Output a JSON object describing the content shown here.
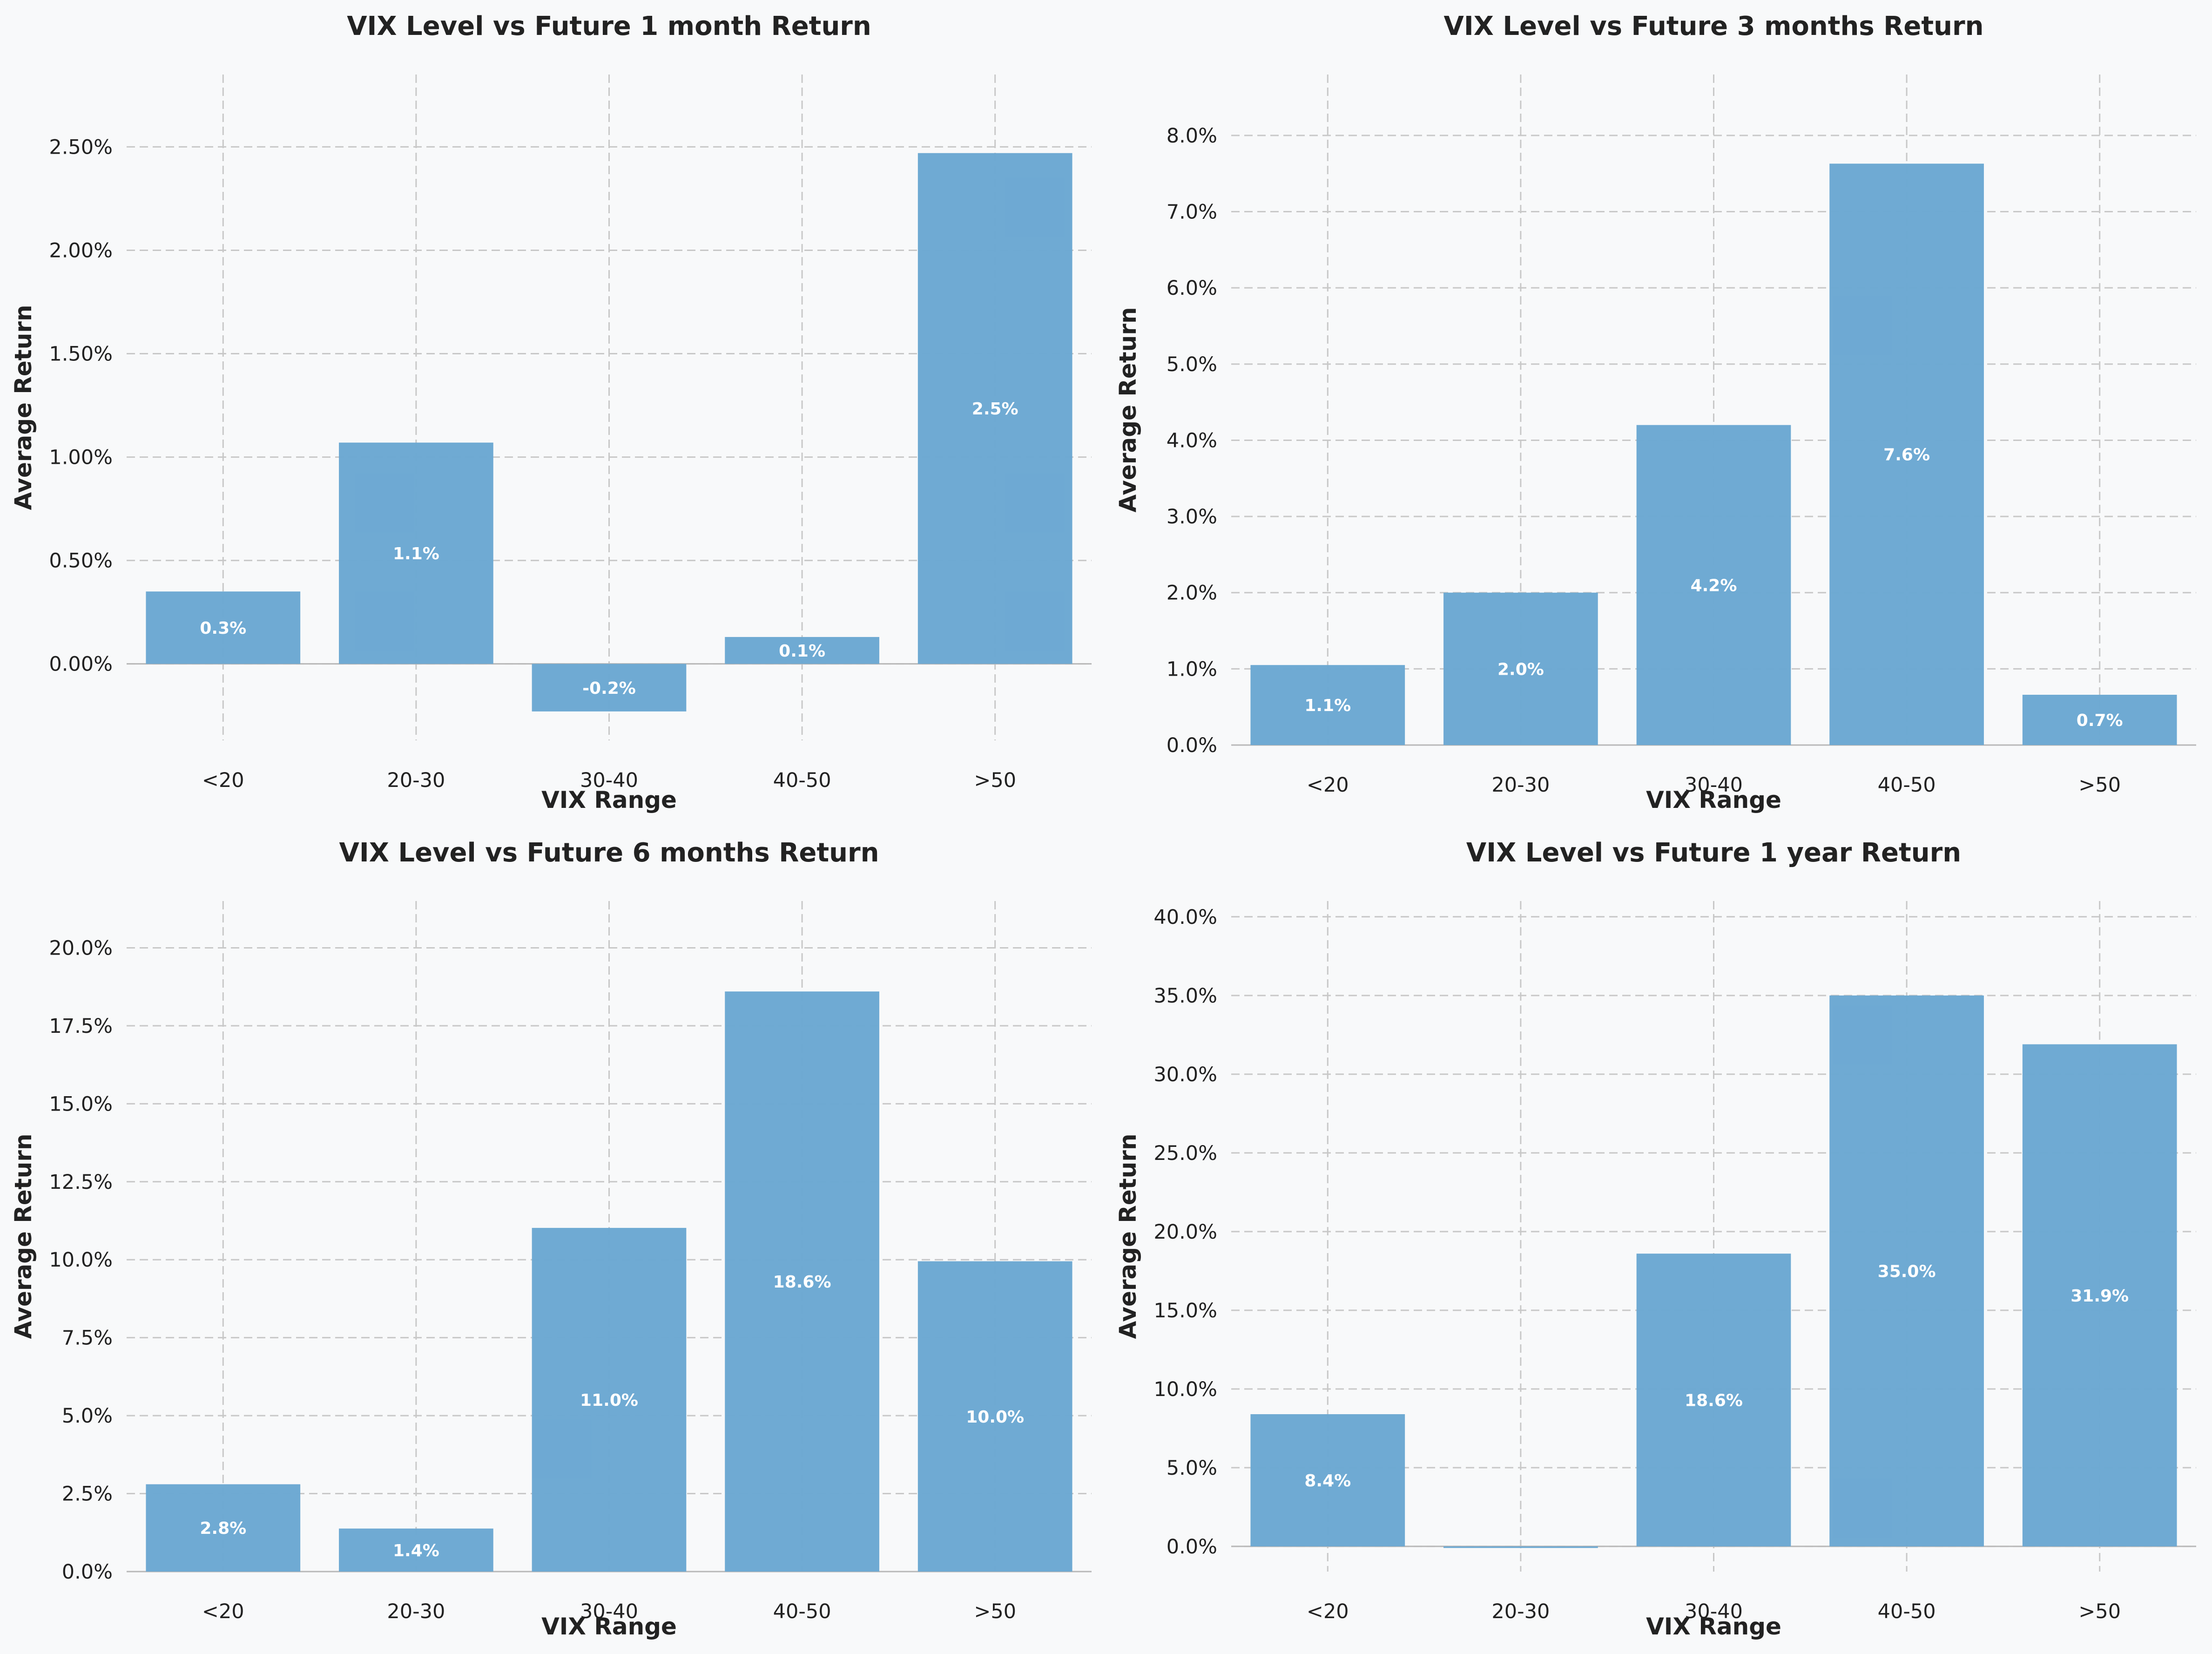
{
  "colors": {
    "background": "#f8f9fa",
    "bar": "#6aa7d2",
    "grid": "#c8c8c8",
    "text": "#222222",
    "bar_label": "#ffffff"
  },
  "chart_data": [
    {
      "type": "bar",
      "title": "VIX Level vs Future 1 month Return",
      "xlabel": "VIX Range",
      "ylabel": "Average Return",
      "categories": [
        "<20",
        "20-30",
        "30-40",
        "40-50",
        ">50"
      ],
      "values": [
        0.35,
        1.07,
        -0.23,
        0.13,
        2.47
      ],
      "data_labels": [
        "0.3%",
        "1.1%",
        "-0.2%",
        "0.1%",
        "2.5%"
      ],
      "ylim": [
        -0.37,
        2.85
      ],
      "yticks": [
        0.0,
        0.5,
        1.0,
        1.5,
        2.0,
        2.5
      ],
      "ytick_labels": [
        "0.00%",
        "0.50%",
        "1.00%",
        "1.50%",
        "2.00%",
        "2.50%"
      ],
      "grid": true
    },
    {
      "type": "bar",
      "title": "VIX Level vs Future 3 months Return",
      "xlabel": "VIX Range",
      "ylabel": "Average Return",
      "categories": [
        "<20",
        "20-30",
        "30-40",
        "40-50",
        ">50"
      ],
      "values": [
        1.05,
        2.0,
        4.2,
        7.63,
        0.66
      ],
      "data_labels": [
        "1.1%",
        "2.0%",
        "4.2%",
        "7.6%",
        "0.7%"
      ],
      "ylim": [
        0,
        8.8
      ],
      "yticks": [
        0,
        1,
        2,
        3,
        4,
        5,
        6,
        7,
        8
      ],
      "ytick_labels": [
        "0.0%",
        "1.0%",
        "2.0%",
        "3.0%",
        "4.0%",
        "5.0%",
        "6.0%",
        "7.0%",
        "8.0%"
      ],
      "grid": true
    },
    {
      "type": "bar",
      "title": "VIX Level vs Future 6 months Return",
      "xlabel": "VIX Range",
      "ylabel": "Average Return",
      "categories": [
        "<20",
        "20-30",
        "30-40",
        "40-50",
        ">50"
      ],
      "values": [
        2.8,
        1.38,
        11.02,
        18.6,
        9.95
      ],
      "data_labels": [
        "2.8%",
        "1.4%",
        "11.0%",
        "18.6%",
        "10.0%"
      ],
      "ylim": [
        0,
        21.5
      ],
      "yticks": [
        0,
        2.5,
        5,
        7.5,
        10,
        12.5,
        15,
        17.5,
        20
      ],
      "ytick_labels": [
        "0.0%",
        "2.5%",
        "5.0%",
        "7.5%",
        "10.0%",
        "12.5%",
        "15.0%",
        "17.5%",
        "20.0%"
      ],
      "grid": true
    },
    {
      "type": "bar",
      "title": "VIX Level vs Future 1 year Return",
      "xlabel": "VIX Range",
      "ylabel": "Average Return",
      "categories": [
        "<20",
        "20-30",
        "30-40",
        "40-50",
        ">50"
      ],
      "values": [
        8.4,
        -0.1,
        18.6,
        35.0,
        31.9
      ],
      "data_labels": [
        "8.4%",
        "",
        "18.6%",
        "35.0%",
        "31.9%"
      ],
      "ylim": [
        -1.6,
        41.0
      ],
      "yticks": [
        0,
        5,
        10,
        15,
        20,
        25,
        30,
        35,
        40
      ],
      "ytick_labels": [
        "0.0%",
        "5.0%",
        "10.0%",
        "15.0%",
        "20.0%",
        "25.0%",
        "30.0%",
        "35.0%",
        "40.0%"
      ],
      "grid": true
    }
  ]
}
